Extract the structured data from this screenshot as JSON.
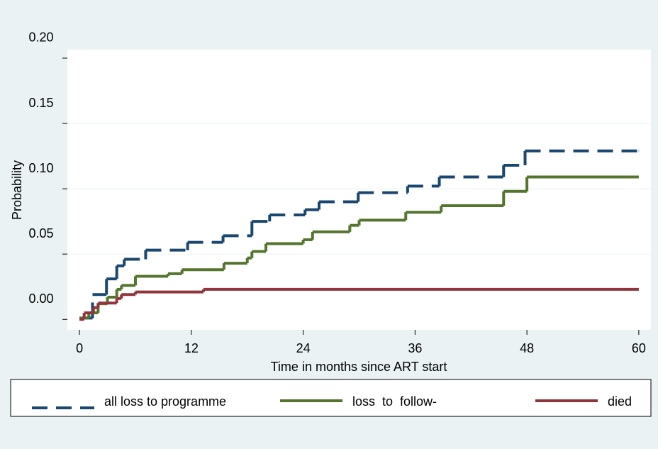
{
  "chart_data": {
    "type": "step",
    "ylabel": "Probability",
    "xlabel": "Time in months since ART start",
    "xlim": [
      -1.3,
      61.3
    ],
    "xticks": [
      0,
      12,
      24,
      36,
      48,
      60
    ],
    "ylim": [
      -0.008,
      0.2065
    ],
    "yticks": [
      {
        "value": 0,
        "label": "0.00"
      },
      {
        "value": 0.05,
        "label": "0.05"
      },
      {
        "value": 0.1,
        "label": "0.10"
      },
      {
        "value": 0.15,
        "label": "0.15"
      },
      {
        "value": 0.2,
        "label": "0.20"
      }
    ],
    "grid": true,
    "series": [
      {
        "name": "all loss to programme",
        "color": "#1a476f",
        "dashed": true,
        "x": [
          0,
          1.4,
          2.9,
          4,
          4.8,
          7.1,
          11.6,
          15.4,
          18.5,
          20.4,
          24.2,
          25.7,
          29.9,
          35.2,
          38.6,
          45.5,
          47.8,
          60
        ],
        "values": [
          0.001,
          0.019,
          0.031,
          0.041,
          0.046,
          0.053,
          0.059,
          0.064,
          0.075,
          0.08,
          0.084,
          0.09,
          0.097,
          0.102,
          0.109,
          0.118,
          0.129,
          0.129
        ]
      },
      {
        "name": "loss  to  follow-",
        "color": "#55752f",
        "dashed": false,
        "x": [
          0,
          1,
          2,
          3,
          4,
          4.5,
          6,
          9.5,
          11,
          15.5,
          18,
          18.5,
          20,
          24,
          25,
          29,
          30,
          35,
          38.8,
          45.5,
          48,
          60
        ],
        "values": [
          0.001,
          0.005,
          0.012,
          0.017,
          0.023,
          0.026,
          0.033,
          0.035,
          0.038,
          0.043,
          0.047,
          0.052,
          0.058,
          0.061,
          0.067,
          0.072,
          0.076,
          0.082,
          0.087,
          0.098,
          0.109,
          0.109
        ]
      },
      {
        "name": "died",
        "color": "#90353b",
        "dashed": false,
        "x": [
          0,
          0.5,
          1.5,
          2,
          4,
          4.5,
          6,
          13.3,
          60
        ],
        "values": [
          0,
          0.005,
          0.009,
          0.0125,
          0.016,
          0.019,
          0.021,
          0.023,
          0.023
        ]
      }
    ]
  }
}
